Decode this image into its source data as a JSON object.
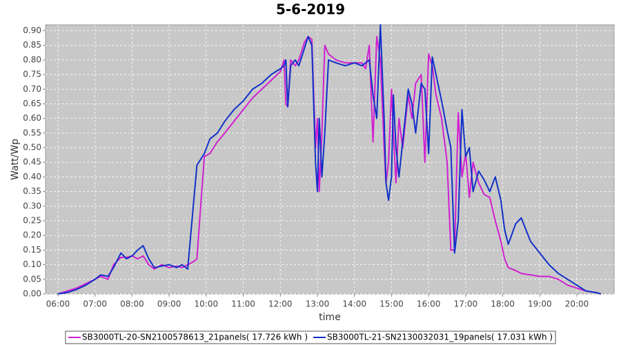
{
  "chart_data": {
    "type": "line",
    "title": "5-6-2019",
    "x_label": "time",
    "y_label": "Watt/Wp",
    "x": [
      6.0,
      6.25,
      6.5,
      6.75,
      7.0,
      7.15,
      7.35,
      7.5,
      7.7,
      7.85,
      8.0,
      8.15,
      8.3,
      8.45,
      8.6,
      8.8,
      9.0,
      9.2,
      9.35,
      9.5,
      9.65,
      9.75,
      9.85,
      9.95,
      10.1,
      10.3,
      10.5,
      10.75,
      11.0,
      11.25,
      11.5,
      11.75,
      12.0,
      12.1,
      12.15,
      12.2,
      12.28,
      12.4,
      12.5,
      12.65,
      12.75,
      12.85,
      12.95,
      13.0,
      13.05,
      13.12,
      13.2,
      13.3,
      13.5,
      13.75,
      14.0,
      14.2,
      14.3,
      14.4,
      14.5,
      14.6,
      14.7,
      14.8,
      14.85,
      14.92,
      15.0,
      15.05,
      15.12,
      15.2,
      15.3,
      15.45,
      15.55,
      15.65,
      15.8,
      15.9,
      16.0,
      16.1,
      16.2,
      16.35,
      16.5,
      16.6,
      16.7,
      16.8,
      16.9,
      17.0,
      17.1,
      17.2,
      17.35,
      17.5,
      17.65,
      17.8,
      17.95,
      18.05,
      18.15,
      18.35,
      18.5,
      18.75,
      19.0,
      19.25,
      19.5,
      19.75,
      20.0,
      20.25,
      20.5,
      20.65
    ],
    "series": [
      {
        "name": "SB3000TL-20-SN2100578613_21panels( 17.726 kWh )",
        "color": "#d020d0",
        "values": [
          0,
          0.01,
          0.02,
          0.035,
          0.05,
          0.06,
          0.05,
          0.1,
          0.125,
          0.125,
          0.13,
          0.12,
          0.13,
          0.1,
          0.085,
          0.1,
          0.09,
          0.095,
          0.09,
          0.1,
          0.11,
          0.12,
          0.3,
          0.47,
          0.48,
          0.52,
          0.55,
          0.59,
          0.63,
          0.67,
          0.7,
          0.73,
          0.76,
          0.8,
          0.65,
          0.64,
          0.8,
          0.78,
          0.8,
          0.86,
          0.88,
          0.87,
          0.5,
          0.6,
          0.35,
          0.55,
          0.85,
          0.82,
          0.8,
          0.79,
          0.79,
          0.79,
          0.77,
          0.85,
          0.52,
          0.88,
          0.8,
          0.5,
          0.38,
          0.45,
          0.7,
          0.55,
          0.38,
          0.6,
          0.5,
          0.68,
          0.6,
          0.72,
          0.75,
          0.45,
          0.82,
          0.78,
          0.68,
          0.6,
          0.45,
          0.15,
          0.15,
          0.62,
          0.4,
          0.48,
          0.33,
          0.45,
          0.38,
          0.34,
          0.33,
          0.25,
          0.18,
          0.12,
          0.09,
          0.08,
          0.07,
          0.065,
          0.06,
          0.06,
          0.05,
          0.03,
          0.02,
          0.01,
          0.005,
          0
        ]
      },
      {
        "name": "SB3000TL-21-SN2130032031_19panels( 17.031 kWh )",
        "color": "#1030c8",
        "values": [
          0,
          0.005,
          0.015,
          0.03,
          0.05,
          0.065,
          0.06,
          0.09,
          0.14,
          0.12,
          0.13,
          0.15,
          0.165,
          0.12,
          0.09,
          0.095,
          0.1,
          0.09,
          0.1,
          0.085,
          0.3,
          0.44,
          0.46,
          0.48,
          0.53,
          0.55,
          0.59,
          0.63,
          0.66,
          0.7,
          0.72,
          0.75,
          0.77,
          0.78,
          0.8,
          0.64,
          0.78,
          0.8,
          0.78,
          0.84,
          0.88,
          0.85,
          0.45,
          0.35,
          0.6,
          0.4,
          0.55,
          0.8,
          0.79,
          0.78,
          0.79,
          0.78,
          0.79,
          0.8,
          0.68,
          0.6,
          0.92,
          0.6,
          0.38,
          0.32,
          0.4,
          0.68,
          0.5,
          0.4,
          0.52,
          0.7,
          0.65,
          0.55,
          0.72,
          0.7,
          0.48,
          0.81,
          0.75,
          0.66,
          0.56,
          0.5,
          0.14,
          0.25,
          0.63,
          0.47,
          0.5,
          0.35,
          0.42,
          0.39,
          0.35,
          0.4,
          0.32,
          0.22,
          0.17,
          0.24,
          0.26,
          0.18,
          0.14,
          0.1,
          0.07,
          0.05,
          0.03,
          0.01,
          0.005,
          0
        ]
      }
    ],
    "xlim": [
      5.665,
      21.005
    ],
    "xticks": [
      {
        "value": 6,
        "label": "06:00"
      },
      {
        "value": 7,
        "label": "07:00"
      },
      {
        "value": 8,
        "label": "08:00"
      },
      {
        "value": 9,
        "label": "09:00"
      },
      {
        "value": 10,
        "label": "10:00"
      },
      {
        "value": 11,
        "label": "11:00"
      },
      {
        "value": 12,
        "label": "12:00"
      },
      {
        "value": 13,
        "label": "13:00"
      },
      {
        "value": 14,
        "label": "14:00"
      },
      {
        "value": 15,
        "label": "15:00"
      },
      {
        "value": 16,
        "label": "16:00"
      },
      {
        "value": 17,
        "label": "17:00"
      },
      {
        "value": 18,
        "label": "18:00"
      },
      {
        "value": 19,
        "label": "19:00"
      },
      {
        "value": 20,
        "label": "20:00"
      }
    ],
    "ylim": [
      0,
      0.92
    ],
    "yticks": [
      {
        "value": 0,
        "label": "0.00"
      },
      {
        "value": 0.05,
        "label": "0.05"
      },
      {
        "value": 0.1,
        "label": "0.10"
      },
      {
        "value": 0.15,
        "label": "0.15"
      },
      {
        "value": 0.2,
        "label": "0.20"
      },
      {
        "value": 0.25,
        "label": "0.25"
      },
      {
        "value": 0.3,
        "label": "0.30"
      },
      {
        "value": 0.35,
        "label": "0.35"
      },
      {
        "value": 0.4,
        "label": "0.40"
      },
      {
        "value": 0.45,
        "label": "0.45"
      },
      {
        "value": 0.5,
        "label": "0.50"
      },
      {
        "value": 0.55,
        "label": "0.55"
      },
      {
        "value": 0.6,
        "label": "0.60"
      },
      {
        "value": 0.65,
        "label": "0.65"
      },
      {
        "value": 0.7,
        "label": "0.70"
      },
      {
        "value": 0.75,
        "label": "0.75"
      },
      {
        "value": 0.8,
        "label": "0.80"
      },
      {
        "value": 0.85,
        "label": "0.85"
      },
      {
        "value": 0.9,
        "label": "0.90"
      }
    ],
    "grid": true,
    "legend": "bottom"
  }
}
